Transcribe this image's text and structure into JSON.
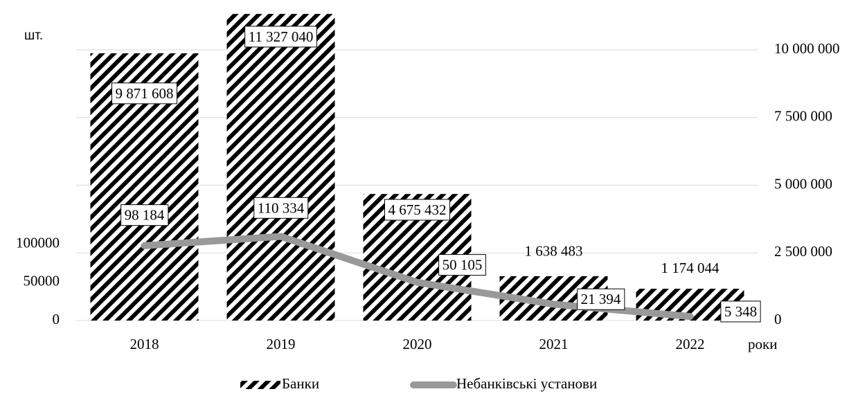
{
  "chart_data": {
    "type": "bar_line",
    "y_label": "шт.",
    "x_label": "роки",
    "categories": [
      "2018",
      "2019",
      "2020",
      "2021",
      "2022"
    ],
    "series": [
      {
        "name": "Банки",
        "type": "bar",
        "axis": "y2",
        "color": "#000000",
        "values": [
          9871608,
          11327040,
          4675432,
          1638483,
          1174044
        ],
        "value_labels": [
          "9 871 608",
          "11 327 040",
          "4 675 432",
          "1 638 483",
          "1 174 044"
        ]
      },
      {
        "name": "Небанківські установи",
        "type": "line",
        "axis": "y",
        "color": "#999999",
        "values": [
          98184,
          110334,
          50105,
          21394,
          5348
        ],
        "value_labels": [
          "98 184",
          "110 334",
          "50 105",
          "21 394",
          "5 348"
        ]
      }
    ],
    "ylim": [
      0,
      355000
    ],
    "yticks": [
      0,
      50000,
      100000
    ],
    "y2lim": [
      0,
      10000000
    ],
    "y2ticks": [
      {
        "value": 0,
        "label": "0"
      },
      {
        "value": 2500000,
        "label": "2 500 000"
      },
      {
        "value": 5000000,
        "label": "5 000 000"
      },
      {
        "value": 7500000,
        "label": "7 500 000"
      },
      {
        "value": 10000000,
        "label": "10 000 000"
      }
    ],
    "grid": true
  }
}
